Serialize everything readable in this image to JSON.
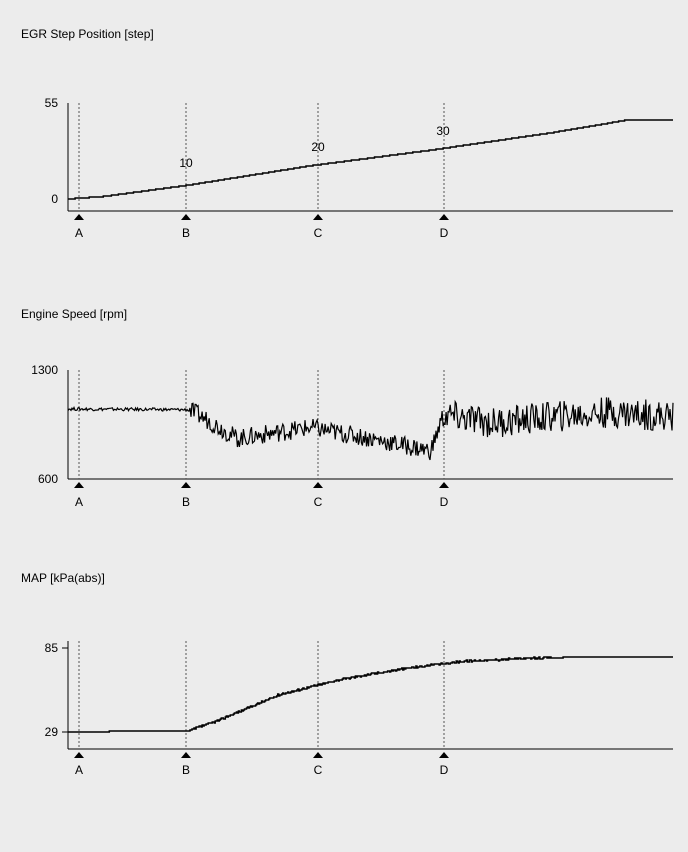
{
  "chart_data": [
    {
      "type": "line",
      "title": "EGR Step Position [step]",
      "ylim": [
        0,
        55
      ],
      "ytick_labels": [
        "55",
        "0"
      ],
      "markers": [
        "A",
        "B",
        "C",
        "D"
      ],
      "annotations": [
        "10",
        "20",
        "30"
      ],
      "series": [
        {
          "x": [
            0,
            0.06,
            0.2,
            0.4,
            0.6,
            0.8,
            0.92,
            1.0
          ],
          "values": [
            0,
            1.5,
            8,
            19,
            28,
            38,
            45,
            45
          ]
        }
      ],
      "grid": false
    },
    {
      "type": "line",
      "title": "Engine Speed [rpm]",
      "ylim": [
        600,
        1300
      ],
      "ytick_labels": [
        "1300",
        "600"
      ],
      "markers": [
        "A",
        "B",
        "C",
        "D"
      ],
      "series": [
        {
          "x": [
            0,
            0.2,
            0.23,
            0.28,
            0.4,
            0.5,
            0.6,
            0.62,
            0.7,
            0.8,
            0.9,
            1.0
          ],
          "values": [
            1050,
            1045,
            980,
            860,
            930,
            860,
            780,
            1010,
            960,
            1000,
            1030,
            1000
          ]
        }
      ],
      "grid": false
    },
    {
      "type": "line",
      "title": "MAP [kPa(abs)]",
      "ylim": [
        29,
        85
      ],
      "ytick_labels": [
        "85",
        "29"
      ],
      "markers": [
        "A",
        "B",
        "C",
        "D"
      ],
      "series": [
        {
          "x": [
            0,
            0.2,
            0.25,
            0.35,
            0.45,
            0.55,
            0.65,
            0.75,
            0.85,
            1.0
          ],
          "values": [
            29,
            30,
            37,
            54,
            64,
            71,
            76,
            78,
            79,
            79
          ]
        }
      ],
      "grid": false
    }
  ]
}
